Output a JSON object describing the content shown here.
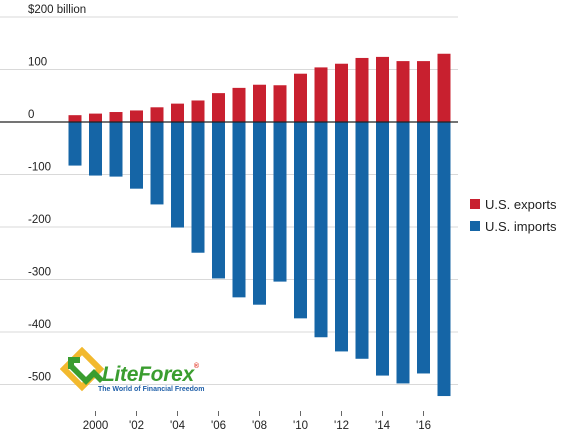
{
  "chart_data": {
    "type": "bar",
    "title": "",
    "xlabel": "",
    "ylabel": "",
    "y_unit_label": "$200 billion",
    "ylim": [
      -530,
      200
    ],
    "yticks": [
      200,
      100,
      0,
      -100,
      -200,
      -300,
      -400,
      -500
    ],
    "ytick_labels": [
      "$200 billion",
      "100",
      "0",
      "-100",
      "-200",
      "-300",
      "-400",
      "-500"
    ],
    "grid": true,
    "legend_position": "right",
    "categories": [
      1999,
      2000,
      2001,
      2002,
      2003,
      2004,
      2005,
      2006,
      2007,
      2008,
      2009,
      2010,
      2011,
      2012,
      2013,
      2014,
      2015,
      2016,
      2017
    ],
    "xtick_labels": [
      {
        "category": 2000,
        "label": "2000"
      },
      {
        "category": 2002,
        "label": "'02"
      },
      {
        "category": 2004,
        "label": "'04"
      },
      {
        "category": 2006,
        "label": "'06"
      },
      {
        "category": 2008,
        "label": "'08"
      },
      {
        "category": 2010,
        "label": "'10"
      },
      {
        "category": 2012,
        "label": "'12"
      },
      {
        "category": 2014,
        "label": "'14"
      },
      {
        "category": 2016,
        "label": "'16"
      }
    ],
    "series": [
      {
        "name": "U.S. exports",
        "color": "#c8202f",
        "values": [
          13,
          16,
          19,
          22,
          28,
          35,
          41,
          55,
          65,
          71,
          70,
          92,
          104,
          111,
          122,
          124,
          116,
          116,
          130
        ]
      },
      {
        "name": "U.S. imports",
        "color": "#1565a6",
        "values": [
          -83,
          -102,
          -104,
          -127,
          -157,
          -201,
          -249,
          -298,
          -334,
          -348,
          -304,
          -374,
          -410,
          -437,
          -451,
          -483,
          -498,
          -479,
          -522
        ]
      }
    ]
  },
  "watermark": {
    "brand_lite": "Lite",
    "brand_forex": "Forex",
    "registered": "®",
    "tagline": "The World of Financial Freedom"
  }
}
